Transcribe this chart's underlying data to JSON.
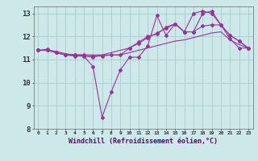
{
  "background_color": "#cce8e8",
  "grid_color": "#aacccc",
  "line_color": "#993399",
  "xlim": [
    -0.5,
    23.5
  ],
  "ylim": [
    8,
    13.3
  ],
  "yticks": [
    8,
    9,
    10,
    11,
    12,
    13
  ],
  "xticks": [
    0,
    1,
    2,
    3,
    4,
    5,
    6,
    7,
    8,
    9,
    10,
    11,
    12,
    13,
    14,
    15,
    16,
    17,
    18,
    19,
    20,
    21,
    22,
    23
  ],
  "xlabel": "Windchill (Refroidissement éolien,°C)",
  "line1_x": [
    0,
    1,
    2,
    3,
    4,
    5,
    6,
    7,
    8,
    9,
    10,
    11,
    12,
    13,
    14,
    15,
    16,
    17,
    18,
    19,
    20,
    21,
    22,
    23
  ],
  "line1_y": [
    11.4,
    11.45,
    11.3,
    11.2,
    11.15,
    11.15,
    10.7,
    8.5,
    9.6,
    10.55,
    11.1,
    11.1,
    11.6,
    12.9,
    12.05,
    12.55,
    12.2,
    13.0,
    13.1,
    13.0,
    12.5,
    11.9,
    11.5,
    11.5
  ],
  "line2_x": [
    0,
    1,
    2,
    3,
    4,
    5,
    6,
    7,
    8,
    9,
    10,
    11,
    12,
    13,
    14,
    15,
    16,
    17,
    18,
    19,
    20,
    21,
    22,
    23
  ],
  "line2_y": [
    11.4,
    11.4,
    11.3,
    11.2,
    11.2,
    11.2,
    11.15,
    11.15,
    11.2,
    11.2,
    11.5,
    11.7,
    11.95,
    12.15,
    12.35,
    12.55,
    12.2,
    12.2,
    12.45,
    12.5,
    12.5,
    12.05,
    11.8,
    11.5
  ],
  "line3_x": [
    0,
    1,
    2,
    3,
    4,
    5,
    6,
    7,
    8,
    9,
    10,
    11,
    12,
    13,
    14,
    15,
    16,
    17,
    18,
    19,
    20,
    21,
    22,
    23
  ],
  "line3_y": [
    11.4,
    11.4,
    11.35,
    11.25,
    11.2,
    11.2,
    11.2,
    11.2,
    11.2,
    11.2,
    11.3,
    11.4,
    11.5,
    11.6,
    11.7,
    11.8,
    11.85,
    11.95,
    12.05,
    12.15,
    12.2,
    11.85,
    11.65,
    11.5
  ],
  "line4_x": [
    0,
    1,
    2,
    3,
    4,
    5,
    6,
    10,
    11,
    12,
    13,
    14,
    15,
    16,
    17,
    18,
    19,
    20,
    21,
    22,
    23
  ],
  "line4_y": [
    11.4,
    11.4,
    11.3,
    11.2,
    11.2,
    11.15,
    11.1,
    11.5,
    11.75,
    12.0,
    12.1,
    12.4,
    12.55,
    12.2,
    12.2,
    13.0,
    13.1,
    12.5,
    12.05,
    11.8,
    11.5
  ]
}
